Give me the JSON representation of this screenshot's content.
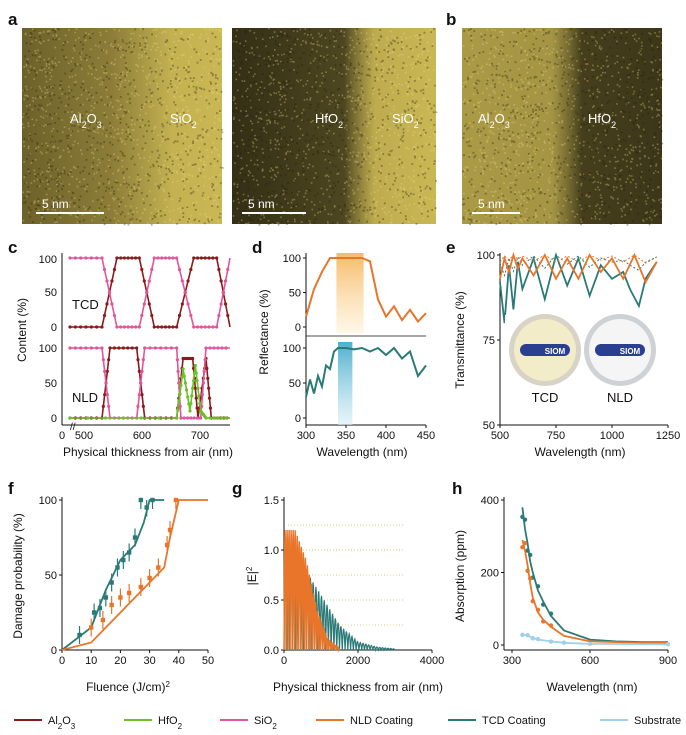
{
  "figure": {
    "panel_letters": [
      "a",
      "b",
      "c",
      "d",
      "e",
      "f",
      "g",
      "h"
    ],
    "tem_labels": {
      "a_left": [
        "Al",
        "2",
        "O",
        "3",
        "SiO",
        "2"
      ],
      "a_right": [
        "HfO",
        "2",
        "SiO",
        "2"
      ],
      "b": [
        "Al",
        "2",
        "O",
        "3",
        "HfO",
        "2"
      ],
      "scalebar": "5 nm"
    },
    "colors": {
      "al2o3": "#8b1a1a",
      "hfo2": "#6cc02a",
      "sio2": "#e2559a",
      "nld": "#e8752a",
      "tcd": "#2a7a78",
      "substrate": "#9fd1e8",
      "tem_bg": "#5a4f22",
      "tem_fg": "#d6c35a"
    },
    "legend": [
      {
        "key": "al2o3",
        "parts": [
          "Al",
          "2",
          "O",
          "3"
        ]
      },
      {
        "key": "hfo2",
        "parts": [
          "HfO",
          "2"
        ]
      },
      {
        "key": "sio2",
        "parts": [
          "SiO",
          "2"
        ]
      },
      {
        "key": "nld",
        "parts": [
          "NLD Coating"
        ]
      },
      {
        "key": "tcd",
        "parts": [
          "TCD Coating"
        ]
      },
      {
        "key": "substrate",
        "parts": [
          "Substrate"
        ]
      }
    ],
    "inset_labels": {
      "tcd": "TCD",
      "nld": "NLD",
      "logo": "SIOM"
    }
  },
  "chart_data": [
    {
      "panel": "c",
      "type": "line",
      "xlabel": "Physical thickness from air (nm)",
      "ylabel": "Content (%)",
      "xticks": [
        "0",
        "500",
        "600",
        "700"
      ],
      "yticks": [
        0,
        50,
        100
      ],
      "subplots": [
        {
          "label": "TCD",
          "series": [
            {
              "key": "al2o3",
              "x": [
                460,
                520,
                548,
                590,
                618,
                660,
                692,
                735,
                760
              ],
              "y": [
                0,
                0,
                100,
                100,
                0,
                0,
                100,
                100,
                0
              ]
            },
            {
              "key": "sio2",
              "x": [
                460,
                520,
                548,
                590,
                618,
                660,
                692,
                735,
                760
              ],
              "y": [
                100,
                100,
                0,
                0,
                100,
                100,
                0,
                0,
                100
              ]
            }
          ]
        },
        {
          "label": "NLD",
          "series": [
            {
              "key": "al2o3",
              "x": [
                460,
                520,
                535,
                585,
                600,
                660,
                672,
                690,
                700,
                715,
                725,
                760
              ],
              "y": [
                0,
                0,
                100,
                100,
                0,
                0,
                85,
                85,
                0,
                85,
                0,
                0
              ]
            },
            {
              "key": "sio2",
              "x": [
                460,
                520,
                535,
                585,
                600,
                660,
                668,
                705,
                715,
                760
              ],
              "y": [
                100,
                100,
                0,
                0,
                100,
                100,
                0,
                0,
                100,
                100
              ]
            },
            {
              "key": "hfo2",
              "x": [
                460,
                660,
                672,
                685,
                695,
                705,
                715,
                760
              ],
              "y": [
                0,
                0,
                70,
                10,
                75,
                10,
                0,
                0
              ]
            }
          ]
        }
      ]
    },
    {
      "panel": "d",
      "type": "line",
      "xlabel": "Wavelength (nm)",
      "ylabel": "Reflectance (%)",
      "xticks": [
        300,
        350,
        400,
        450
      ],
      "yticks": [
        0,
        50,
        100
      ],
      "subplots": [
        {
          "series": [
            {
              "key": "nld",
              "x": [
                300,
                310,
                320,
                330,
                335,
                340,
                345,
                350,
                360,
                370,
                380,
                390,
                400,
                410,
                420,
                430,
                440,
                450
              ],
              "y": [
                15,
                55,
                80,
                100,
                100,
                100,
                100,
                100,
                100,
                100,
                95,
                40,
                15,
                30,
                10,
                25,
                8,
                20
              ]
            }
          ],
          "band": [
            338,
            372
          ]
        },
        {
          "series": [
            {
              "key": "tcd",
              "x": [
                300,
                305,
                310,
                315,
                320,
                325,
                330,
                335,
                340,
                345,
                350,
                360,
                370,
                380,
                390,
                400,
                410,
                420,
                430,
                440,
                450
              ],
              "y": [
                30,
                55,
                35,
                60,
                45,
                75,
                70,
                95,
                100,
                100,
                100,
                98,
                100,
                95,
                100,
                90,
                100,
                85,
                95,
                60,
                75
              ]
            }
          ],
          "band": [
            340,
            358
          ]
        }
      ]
    },
    {
      "panel": "e",
      "type": "line",
      "xlabel": "Wavelength (nm)",
      "ylabel": "Transmittance (%)",
      "xticks": [
        500,
        750,
        1000,
        1250
      ],
      "yticks": [
        50,
        75,
        100
      ],
      "ylim": [
        50,
        100
      ],
      "series": [
        {
          "key": "tcd",
          "x": [
            500,
            520,
            540,
            560,
            580,
            600,
            650,
            700,
            750,
            800,
            850,
            900,
            950,
            1000,
            1050,
            1080,
            1120,
            1150,
            1200
          ],
          "y": [
            92,
            80,
            97,
            84,
            98,
            90,
            99,
            87,
            100,
            91,
            99,
            88,
            97,
            93,
            95,
            90,
            85,
            93,
            98
          ]
        },
        {
          "key": "nld",
          "x": [
            500,
            520,
            540,
            560,
            580,
            600,
            650,
            700,
            750,
            800,
            850,
            900,
            950,
            1000,
            1050,
            1100,
            1150,
            1200
          ],
          "y": [
            93,
            99,
            95,
            100,
            96,
            99,
            94,
            100,
            93,
            99,
            93,
            100,
            95,
            99,
            93,
            100,
            92,
            98
          ]
        }
      ]
    },
    {
      "panel": "f",
      "type": "scatter",
      "xlabel": "Fluence (J/cm)",
      "xlabel_sup": "2",
      "ylabel": "Damage probability (%)",
      "xticks": [
        0,
        10,
        20,
        30,
        40,
        50
      ],
      "yticks": [
        0,
        50,
        100
      ],
      "series": [
        {
          "key": "tcd",
          "x": [
            6,
            11,
            13,
            15,
            17,
            19,
            21,
            23,
            25,
            27,
            29,
            31
          ],
          "y": [
            10,
            25,
            28,
            35,
            45,
            55,
            60,
            65,
            75,
            100,
            95,
            100
          ],
          "fit": {
            "x": [
              0,
              10,
              15,
              20,
              25,
              28,
              30,
              35
            ],
            "y": [
              0,
              15,
              40,
              60,
              70,
              85,
              100,
              100
            ]
          }
        },
        {
          "key": "nld",
          "x": [
            10,
            14,
            17,
            20,
            23,
            27,
            30,
            33,
            36,
            37,
            39
          ],
          "y": [
            15,
            20,
            30,
            35,
            38,
            42,
            48,
            55,
            70,
            80,
            100
          ],
          "fit": {
            "x": [
              0,
              10,
              20,
              30,
              35,
              37,
              40,
              50
            ],
            "y": [
              0,
              5,
              25,
              45,
              55,
              75,
              100,
              100
            ]
          }
        }
      ]
    },
    {
      "panel": "g",
      "type": "line",
      "xlabel": "Physical thickness from air (nm)",
      "ylabel": "|E|",
      "ylabel_sup": "2",
      "xticks": [
        0,
        2000,
        4000
      ],
      "yticks": [
        0.0,
        0.5,
        1.0,
        1.5
      ],
      "series": [
        {
          "key": "tcd",
          "x": [
            0,
            500,
            1000,
            1500,
            2000,
            2500,
            3000
          ],
          "y": [
            0.9,
            0.85,
            0.55,
            0.25,
            0.08,
            0.03,
            0.01
          ]
        },
        {
          "key": "nld",
          "x": [
            0,
            300,
            600,
            900,
            1200,
            1500
          ],
          "y": [
            1.2,
            1.2,
            0.9,
            0.4,
            0.1,
            0.02
          ]
        }
      ]
    },
    {
      "panel": "h",
      "type": "scatter",
      "xlabel": "Wavelength (nm)",
      "ylabel": "Absorption (ppm)",
      "xticks": [
        300,
        600,
        900
      ],
      "yticks": [
        0,
        200,
        400
      ],
      "series": [
        {
          "key": "tcd",
          "x": [
            340,
            350,
            360,
            370,
            380,
            400,
            420,
            450,
            500,
            600,
            700,
            800,
            900
          ],
          "y": [
            380,
            320,
            280,
            230,
            200,
            150,
            120,
            80,
            40,
            15,
            10,
            8,
            8
          ]
        },
        {
          "key": "nld",
          "x": [
            340,
            350,
            360,
            370,
            380,
            400,
            420,
            450,
            500,
            600,
            700,
            800,
            900
          ],
          "y": [
            290,
            260,
            220,
            170,
            130,
            90,
            70,
            50,
            25,
            10,
            8,
            6,
            6
          ]
        },
        {
          "key": "substrate",
          "x": [
            340,
            360,
            380,
            400,
            450,
            500,
            600,
            900
          ],
          "y": [
            30,
            25,
            20,
            15,
            10,
            6,
            3,
            2
          ]
        }
      ]
    }
  ]
}
